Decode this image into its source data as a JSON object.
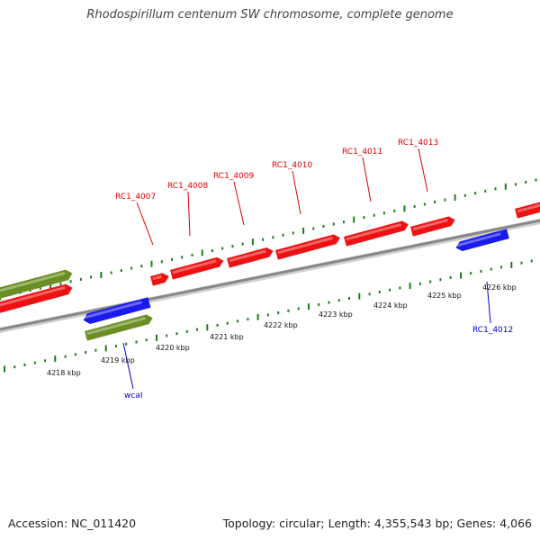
{
  "title": "Rhodospirillum centenum SW chromosome, complete genome",
  "footer": {
    "accession": "Accession: NC_011420",
    "summary": "Topology: circular; Length: 4,355,543 bp; Genes: 4,066"
  },
  "colors": {
    "gene_forward": "#ee1111",
    "gene_reverse": "#1a1aee",
    "rna_green": "#6b8e23",
    "backbone": "#888888",
    "tick": "#1f7a1f",
    "label_forward": "#dd0000",
    "label_reverse": "#0000cc"
  },
  "ticks": [
    "4218 kbp",
    "4219 kbp",
    "4220 kbp",
    "4221 kbp",
    "4222 kbp",
    "4223 kbp",
    "4224 kbp",
    "4225 kbp",
    "4226 kbp"
  ],
  "gene_labels": [
    "RC1_4007",
    "RC1_4008",
    "RC1_4009",
    "RC1_4010",
    "RC1_4011",
    "RC1_4013",
    "RC1_4012",
    "wcaI"
  ]
}
